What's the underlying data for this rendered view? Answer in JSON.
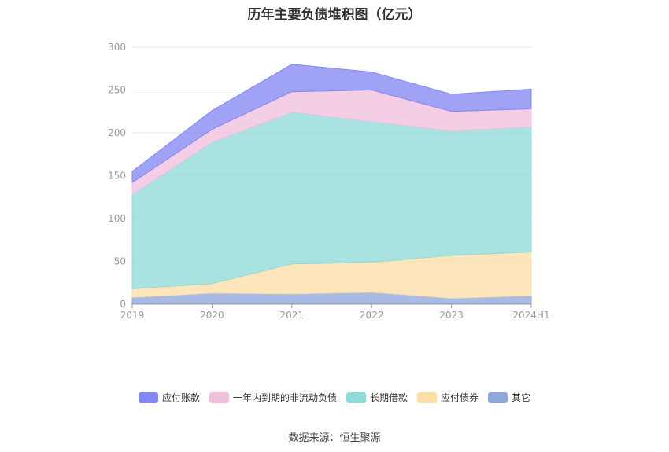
{
  "page": {
    "source_label": "数据来源：恒生聚源"
  },
  "chart_data": {
    "type": "area",
    "stacked": true,
    "title": "历年主要负债堆积图（亿元）",
    "xlabel": "",
    "ylabel": "",
    "x": [
      "2019",
      "2020",
      "2021",
      "2022",
      "2023",
      "2024H1"
    ],
    "yticks": [
      0,
      50,
      100,
      150,
      200,
      250,
      300
    ],
    "ylim": [
      0,
      300
    ],
    "grid": true,
    "legend_position": "bottom",
    "series": [
      {
        "name": "其它",
        "color": "#91a8dc",
        "values": [
          8,
          13,
          12,
          14,
          7,
          10
        ]
      },
      {
        "name": "应付债券",
        "color": "#fcdfa8",
        "values": [
          10,
          11,
          35,
          35,
          50,
          51
        ]
      },
      {
        "name": "长期借款",
        "color": "#8fdbd9",
        "values": [
          110,
          165,
          177,
          164,
          145,
          146
        ]
      },
      {
        "name": "一年内到期的非流动负债",
        "color": "#efc0dc",
        "values": [
          14,
          15,
          24,
          37,
          23,
          21
        ]
      },
      {
        "name": "应付账款",
        "color": "#8488f2",
        "values": [
          13,
          22,
          32,
          21,
          20,
          23
        ]
      }
    ]
  }
}
